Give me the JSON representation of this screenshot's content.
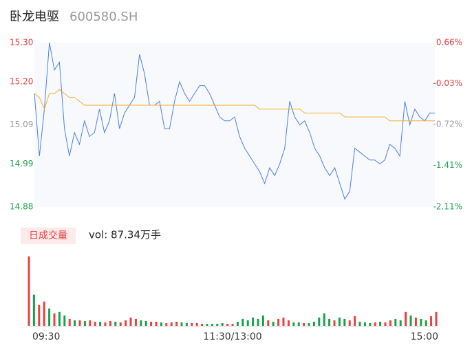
{
  "chart_data": {
    "type": "line",
    "title": "卧龙电驱",
    "subtitle": "600580.SH",
    "x": [
      0,
      3,
      6,
      9,
      12,
      15,
      18,
      21,
      24,
      27,
      30,
      33,
      36,
      39,
      42,
      45,
      48,
      51,
      54,
      57,
      60,
      63,
      66,
      69,
      72,
      75,
      78,
      81,
      84,
      87,
      90,
      93,
      96,
      99,
      102,
      105,
      108,
      111,
      114,
      117,
      120,
      123,
      126,
      129,
      132,
      135,
      138,
      141,
      144,
      147,
      150,
      153,
      156,
      159,
      162,
      165,
      168,
      171,
      174,
      177,
      180,
      183,
      186,
      189,
      192,
      195,
      198,
      201,
      204,
      207,
      210,
      213,
      216,
      219,
      222,
      225,
      228,
      231,
      234,
      237,
      240
    ],
    "xlim": [
      0,
      240
    ],
    "xticks": [
      {
        "value": 0,
        "label": "09:30"
      },
      {
        "value": 120,
        "label": "11:30/13:00"
      },
      {
        "value": 240,
        "label": "15:00"
      }
    ],
    "ylim": [
      14.88,
      15.3
    ],
    "yticks": [
      {
        "value": 15.3,
        "label": "15.30"
      },
      {
        "value": 15.2,
        "label": "15.20"
      },
      15.09,
      14.99,
      14.88
    ],
    "ytick_colors": [
      "#e84040",
      "#e84040",
      "#999999",
      "#1aa04a",
      "#1aa04a"
    ],
    "y2lim": [
      -2.11,
      0.66
    ],
    "y2ticks": [
      {
        "value": 0.66,
        "label": "0.66%"
      },
      {
        "value": -0.03,
        "label": "-0.03%"
      },
      {
        "value": -0.72,
        "label": "-0.72%"
      },
      {
        "value": -1.41,
        "label": "-1.41%"
      },
      {
        "value": -2.11,
        "label": "-2.11%"
      }
    ],
    "series": [
      {
        "color": "#4a7fe0",
        "values": [
          15.17,
          15.01,
          15.13,
          15.3,
          15.23,
          15.25,
          15.08,
          15.01,
          15.07,
          15.04,
          15.1,
          15.06,
          15.07,
          15.13,
          15.07,
          15.1,
          15.17,
          15.08,
          15.12,
          15.14,
          15.16,
          15.27,
          15.22,
          15.14,
          15.14,
          15.15,
          15.08,
          15.08,
          15.15,
          15.2,
          15.17,
          15.15,
          15.17,
          15.19,
          15.19,
          15.17,
          15.14,
          15.11,
          15.1,
          15.1,
          15.11,
          15.06,
          15.03,
          15.01,
          14.99,
          14.97,
          14.94,
          14.98,
          14.96,
          14.99,
          15.03,
          15.15,
          15.11,
          15.09,
          15.1,
          15.07,
          15.03,
          15.01,
          14.98,
          14.96,
          14.98,
          14.94,
          14.9,
          14.92,
          15.03,
          15.02,
          15.01,
          15.0,
          15.0,
          14.99,
          15.0,
          15.04,
          15.03,
          15.01,
          15.15,
          15.09,
          15.13,
          15.11,
          15.1,
          15.12,
          15.12
        ]
      },
      {
        "color": "#f0b030",
        "values": [
          15.17,
          15.16,
          15.13,
          15.17,
          15.17,
          15.18,
          15.17,
          15.16,
          15.16,
          15.15,
          15.14,
          15.14,
          15.14,
          15.14,
          15.14,
          15.14,
          15.14,
          15.14,
          15.14,
          15.14,
          15.14,
          15.14,
          15.14,
          15.14,
          15.14,
          15.14,
          15.14,
          15.14,
          15.14,
          15.14,
          15.14,
          15.14,
          15.14,
          15.14,
          15.14,
          15.14,
          15.14,
          15.14,
          15.14,
          15.14,
          15.14,
          15.14,
          15.14,
          15.14,
          15.14,
          15.13,
          15.13,
          15.13,
          15.13,
          15.13,
          15.13,
          15.13,
          15.13,
          15.13,
          15.12,
          15.12,
          15.12,
          15.12,
          15.12,
          15.12,
          15.12,
          15.12,
          15.11,
          15.11,
          15.11,
          15.11,
          15.11,
          15.11,
          15.11,
          15.11,
          15.11,
          15.1,
          15.1,
          15.1,
          15.1,
          15.1,
          15.1,
          15.1,
          15.1,
          15.1,
          15.1
        ]
      }
    ],
    "volume": {
      "button": "日成交量",
      "label": "vol: 87.34万手",
      "ylim": [
        0,
        3
      ],
      "up_color": "#e84040",
      "down_color": "#1aa04a",
      "values": [
        3.0,
        1.35,
        0.9,
        1.05,
        0.75,
        0.54,
        0.6,
        0.45,
        0.3,
        0.24,
        0.24,
        0.21,
        0.24,
        0.18,
        0.18,
        0.15,
        0.21,
        0.18,
        0.15,
        0.24,
        0.36,
        0.3,
        0.24,
        0.21,
        0.18,
        0.18,
        0.15,
        0.12,
        0.15,
        0.18,
        0.15,
        0.12,
        0.12,
        0.12,
        0.09,
        0.09,
        0.09,
        0.09,
        0.12,
        0.09,
        0.09,
        0.18,
        0.3,
        0.24,
        0.36,
        0.3,
        0.45,
        0.24,
        0.18,
        0.3,
        0.36,
        0.24,
        0.15,
        0.15,
        0.12,
        0.12,
        0.18,
        0.36,
        0.54,
        0.3,
        0.24,
        0.36,
        0.3,
        0.24,
        0.42,
        0.18,
        0.15,
        0.12,
        0.15,
        0.18,
        0.15,
        0.24,
        0.3,
        0.24,
        0.6,
        0.45,
        0.36,
        0.3,
        0.24,
        0.42,
        0.6
      ]
    }
  }
}
